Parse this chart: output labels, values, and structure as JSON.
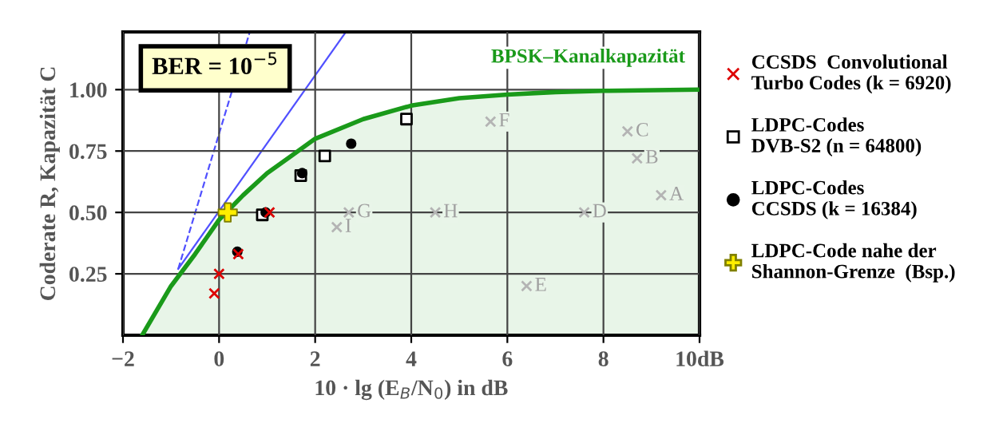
{
  "chart_data": {
    "type": "scatter",
    "xlabel": "10 · lg (E$_{B}$/N$_{0}$) in dB",
    "ylabel": "Coderate R, Kapazität C",
    "xlim": [
      -2,
      10
    ],
    "ylim": [
      0,
      1.235
    ],
    "xticks": [
      {
        "value": -2,
        "label": "−2"
      },
      0,
      2,
      4,
      6,
      8,
      {
        "value": 10,
        "label": "10dB"
      }
    ],
    "yticks": [
      0.25,
      {
        "value": 0.5,
        "label": "0.50"
      },
      0.75,
      {
        "value": 1.0,
        "label": "1.00"
      }
    ],
    "grid": true,
    "legend": "right",
    "annotations": [
      "BER = 10$^{−5}$",
      {
        "text": "A",
        "x": 9.2,
        "y": 0.57
      },
      {
        "text": "B",
        "x": 8.7,
        "y": 0.72
      },
      {
        "text": "C",
        "x": 8.5,
        "y": 0.83
      },
      {
        "text": "D",
        "x": 7.6,
        "y": 0.5
      },
      {
        "text": "E",
        "x": 6.4,
        "y": 0.2
      },
      {
        "text": "F",
        "x": 5.65,
        "y": 0.87
      },
      {
        "text": "G",
        "x": 2.7,
        "y": 0.5
      },
      {
        "text": "H",
        "x": 4.5,
        "y": 0.5
      },
      {
        "text": "I",
        "x": 2.45,
        "y": 0.44
      }
    ],
    "series": [
      {
        "name": "BPSK–Kanalkapazität",
        "type": "area",
        "color": "#1a9a1a",
        "x": [
          -1.6,
          -1.0,
          -0.5,
          0,
          0.5,
          1,
          1.5,
          2,
          3,
          4,
          5,
          6,
          7,
          8,
          10
        ],
        "values": [
          0,
          0.2,
          0.33,
          0.47,
          0.57,
          0.66,
          0.73,
          0.8,
          0.88,
          0.935,
          0.965,
          0.98,
          0.99,
          0.995,
          1.0
        ]
      },
      {
        "type": "line",
        "color": "#5050ff",
        "line_style": "solid",
        "marker": "none",
        "x": [
          -0.85,
          2.64
        ],
        "values": [
          0.27,
          1.235
        ]
      },
      {
        "type": "line",
        "color": "#5050ff",
        "line_style": "dashed",
        "marker": "none",
        "x": [
          -0.85,
          0.64
        ],
        "values": [
          0.27,
          1.235
        ]
      },
      {
        "color": "#b4b4b4",
        "marker": "cross",
        "x": [
          9.2,
          8.7,
          8.5,
          7.6,
          6.4,
          5.65,
          2.7,
          4.5,
          2.45
        ],
        "values": [
          0.57,
          0.72,
          0.83,
          0.5,
          0.2,
          0.87,
          0.5,
          0.5,
          0.44
        ]
      },
      {
        "name": "CCSDS  Convolutional\nTurbo Codes (k = 6920)",
        "type": "scatter",
        "color": "#dd0000",
        "marker": "cross",
        "x": [
          -0.1,
          0,
          0.4,
          1.05
        ],
        "values": [
          0.17,
          0.25,
          0.33,
          0.5
        ]
      },
      {
        "name": "LDPC-Codes\nDVB-S2 (n = 64800)",
        "type": "scatter",
        "color": "#000000",
        "marker": "square",
        "x": [
          0.9,
          1.7,
          2.2,
          3.9
        ],
        "values": [
          0.49,
          0.65,
          0.73,
          0.88
        ]
      },
      {
        "name": "LDPC-Codes\nCCSDS (k = 16384)",
        "type": "scatter",
        "color": "#000000",
        "marker": "circle",
        "x": [
          0.38,
          0.97,
          1.73,
          2.75
        ],
        "values": [
          0.34,
          0.5,
          0.66,
          0.78
        ]
      },
      {
        "name": "LDPC-Code nahe der\nShannon-Grenze  (Bsp.)",
        "type": "scatter",
        "color": "#ffee00",
        "marker": "plus",
        "x": [
          0.18
        ],
        "values": [
          0.5
        ]
      }
    ]
  }
}
